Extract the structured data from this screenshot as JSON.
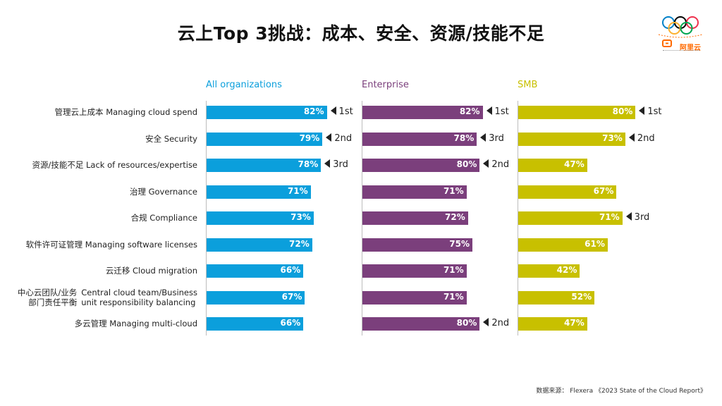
{
  "title": "云上Top 3挑战：成本、安全、资源/技能不足",
  "logo": {
    "text": "阿里云",
    "icon": "olympic-rings-icon"
  },
  "source": "数据来源： Flexera 《2023 State of the Cloud Report》",
  "chart_data": {
    "type": "bar",
    "orientation": "horizontal",
    "categories": [
      {
        "zh": "管理云上成本",
        "en": "Managing cloud spend"
      },
      {
        "zh": "安全",
        "en": "Security"
      },
      {
        "zh": "资源/技能不足",
        "en": "Lack of resources/expertise"
      },
      {
        "zh": "治理",
        "en": "Governance"
      },
      {
        "zh": "合规",
        "en": "Compliance"
      },
      {
        "zh": "软件许可证管理",
        "en": "Managing software licenses"
      },
      {
        "zh": "云迁移",
        "en": "Cloud migration"
      },
      {
        "zh": "中心云团队/业务\n部门责任平衡",
        "en": "Central cloud team/Business\nunit responsibility balancing"
      },
      {
        "zh": "多云管理",
        "en": "Managing multi-cloud"
      }
    ],
    "series": [
      {
        "name": "All organizations",
        "color": "#0b9fdc",
        "values": [
          82,
          79,
          78,
          71,
          73,
          72,
          66,
          67,
          66
        ],
        "ranks": [
          "1st",
          "2nd",
          "3rd",
          "",
          "",
          "",
          "",
          "",
          ""
        ]
      },
      {
        "name": "Enterprise",
        "color": "#7b3f7c",
        "values": [
          82,
          78,
          80,
          71,
          72,
          75,
          71,
          71,
          80
        ],
        "ranks": [
          "1st",
          "3rd",
          "2nd",
          "",
          "",
          "",
          "",
          "",
          "2nd"
        ]
      },
      {
        "name": "SMB",
        "color": "#c8c000",
        "values": [
          80,
          73,
          47,
          67,
          71,
          61,
          42,
          52,
          47
        ],
        "ranks": [
          "1st",
          "2nd",
          "",
          "",
          "3rd",
          "",
          "",
          "",
          ""
        ]
      }
    ],
    "value_suffix": "%",
    "xlim": [
      0,
      100
    ],
    "legend": "panel-titles-top"
  }
}
